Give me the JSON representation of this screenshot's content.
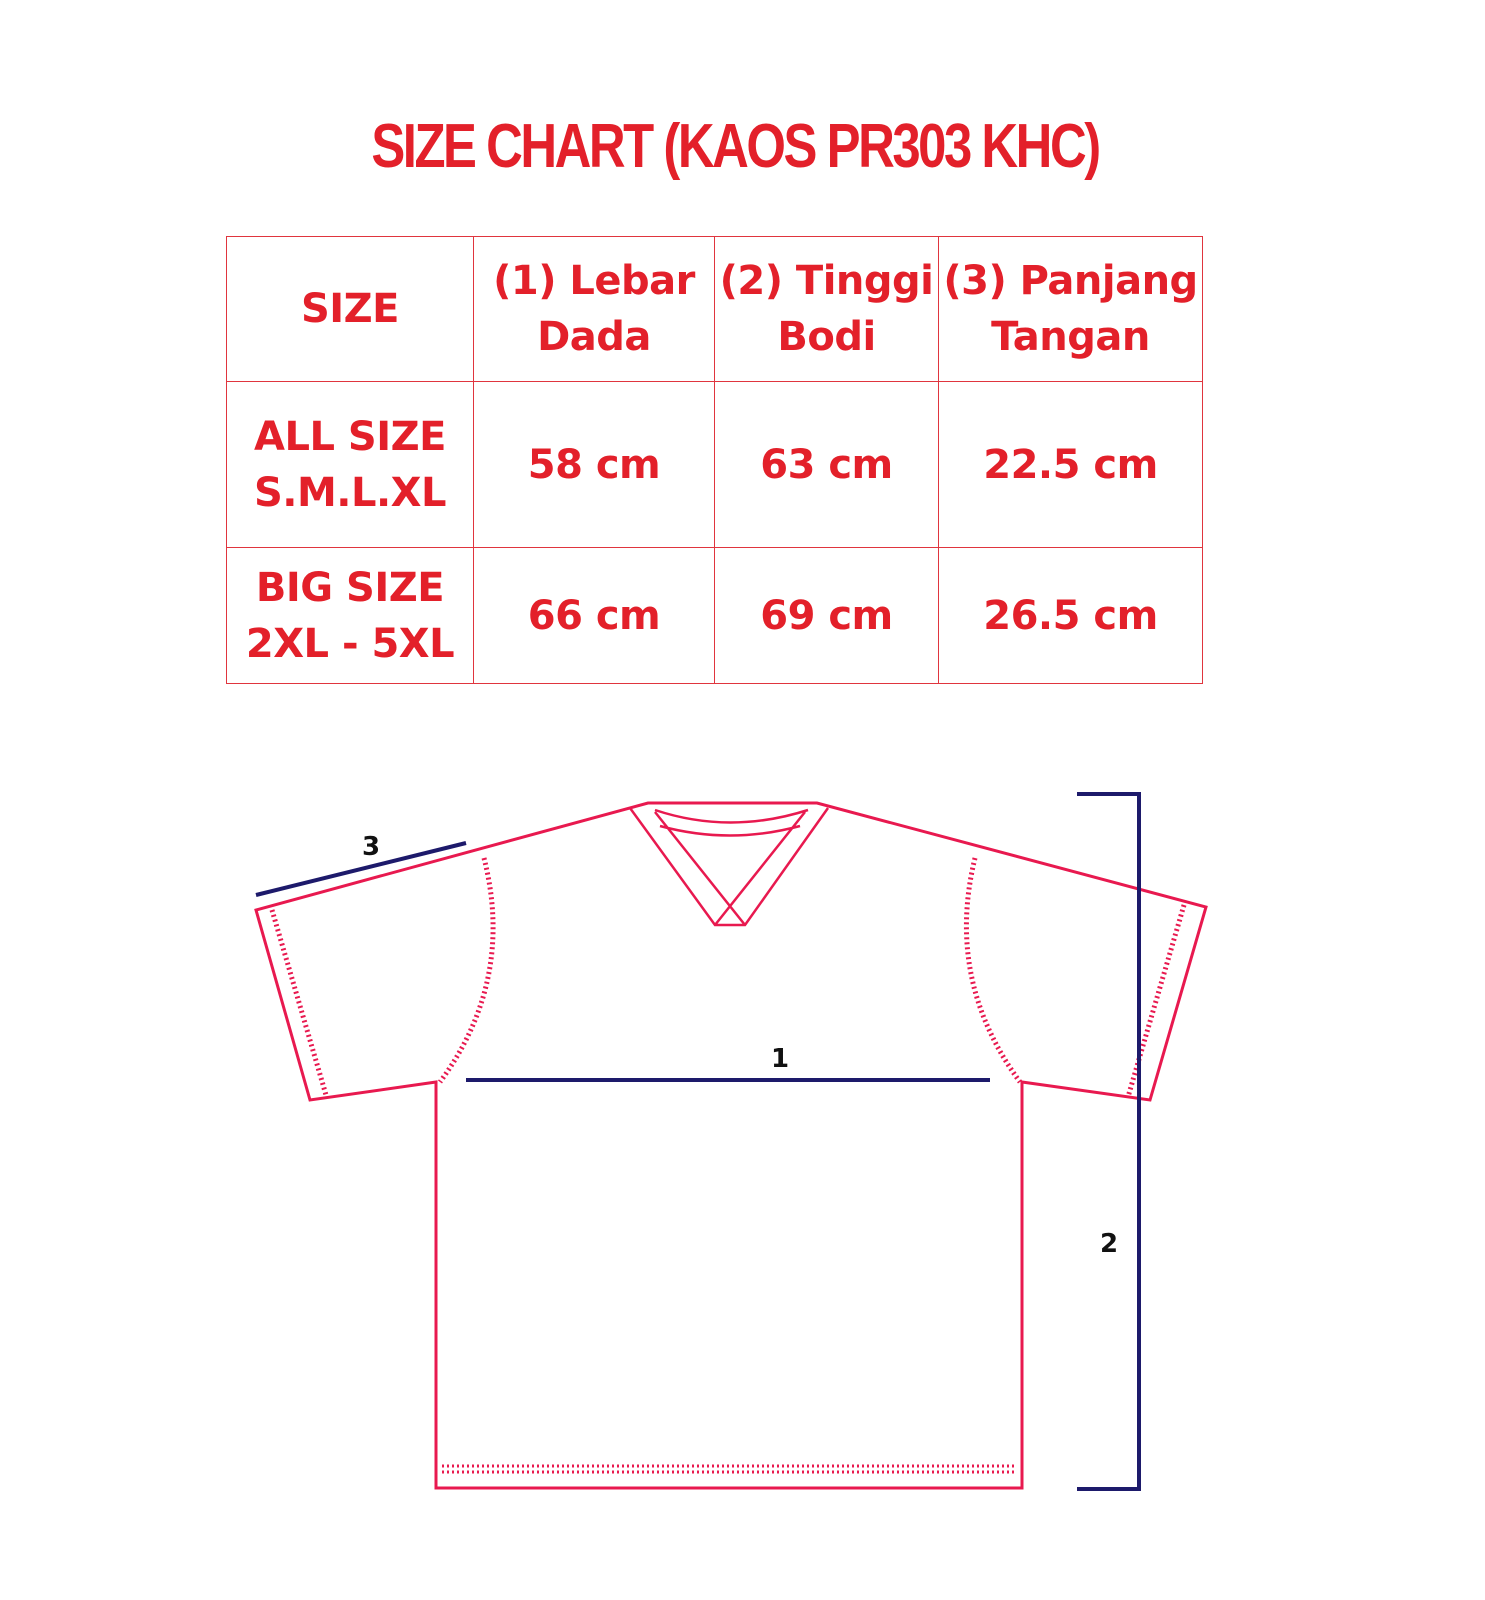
{
  "title": "SIZE CHART (KAOS PR303 KHC)",
  "table": {
    "headers": [
      "SIZE",
      "(1) Lebar Dada",
      "(2) Tinggi Bodi",
      "(3) Panjang Tangan"
    ],
    "header_lines": [
      [
        "SIZE"
      ],
      [
        "(1) Lebar",
        "Dada"
      ],
      [
        "(2) Tinggi",
        "Bodi"
      ],
      [
        "(3) Panjang",
        "Tangan"
      ]
    ],
    "rows": [
      {
        "size_line1": "ALL SIZE",
        "size_line2": "S.M.L.XL",
        "lebar_dada": "58 cm",
        "tinggi_bodi": "63 cm",
        "panjang_tangan": "22.5 cm"
      },
      {
        "size_line1": "BIG SIZE",
        "size_line2": "2XL - 5XL",
        "lebar_dada": "66 cm",
        "tinggi_bodi": "69 cm",
        "panjang_tangan": "26.5 cm"
      }
    ]
  },
  "diagram": {
    "labels": {
      "chest": "1",
      "body_height": "2",
      "sleeve": "3"
    },
    "colors": {
      "text": "#e3202a",
      "shirt_outline": "#e8194f",
      "measure_lines": "#1d1a6b"
    }
  }
}
